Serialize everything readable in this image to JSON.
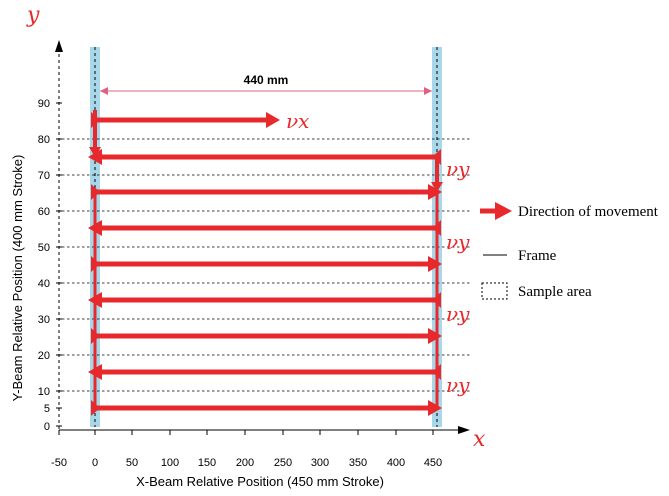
{
  "axes": {
    "y_letter": "y",
    "x_letter": "x",
    "y_title": "Y-Beam Relative Position (400 mm Stroke)",
    "x_title": "X-Beam Relative Position (450 mm Stroke)",
    "y_ticks": [
      "90",
      "80",
      "70",
      "60",
      "50",
      "40",
      "30",
      "20",
      "10",
      "5",
      "0"
    ],
    "x_ticks": [
      "-50",
      "0",
      "50",
      "100",
      "150",
      "200",
      "250",
      "300",
      "350",
      "400",
      "450"
    ]
  },
  "dimension": {
    "label": "440 mm"
  },
  "velocity": {
    "vx": "νx",
    "vy": "νy"
  },
  "legend": {
    "direction": "Direction of movement",
    "frame": "Frame",
    "sample": "Sample area"
  },
  "colors": {
    "arrow": "#e8292c",
    "frame_fill": "#a9d7ea",
    "dimension": "#e06080"
  }
}
